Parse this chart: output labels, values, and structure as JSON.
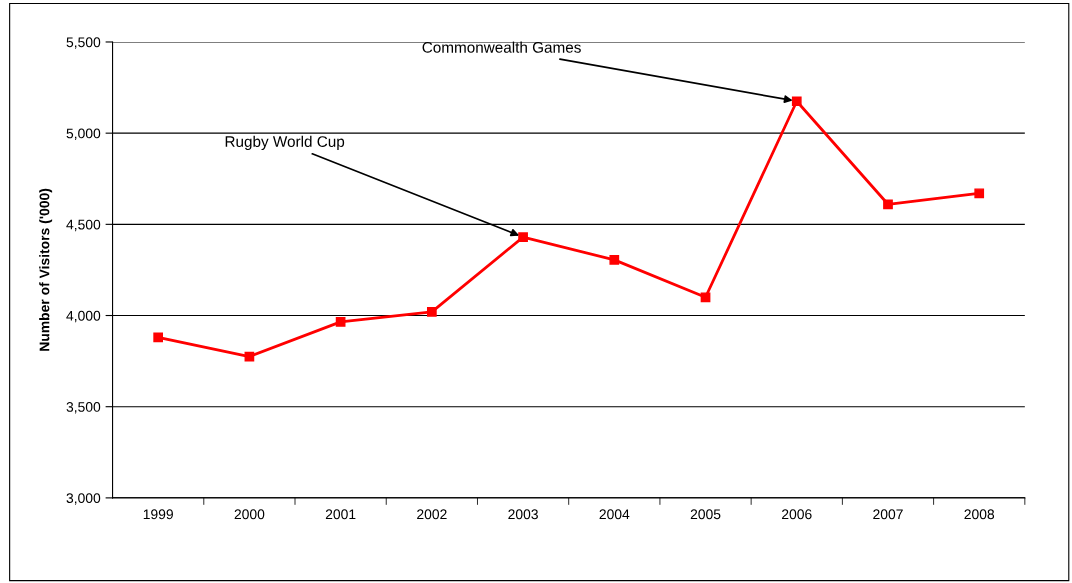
{
  "chart_data": {
    "type": "line",
    "ylabel": "Number of Visitors ('000)",
    "categories": [
      "1999",
      "2000",
      "2001",
      "2002",
      "2003",
      "2004",
      "2005",
      "2006",
      "2007",
      "2008"
    ],
    "series": [
      {
        "color": "#ff0000",
        "values": [
          3880,
          3775,
          3965,
          4020,
          4430,
          4305,
          4100,
          5175,
          4610,
          4670
        ]
      }
    ],
    "ylim": [
      3000,
      5500
    ],
    "yticks": [
      {
        "value": 3000,
        "label": "3,000"
      },
      {
        "value": 3500,
        "label": "3,500"
      },
      {
        "value": 4000,
        "label": "4,000"
      },
      {
        "value": 4500,
        "label": "4,500"
      },
      {
        "value": 5000,
        "label": "5,000"
      },
      {
        "value": 5500,
        "label": "5,500"
      }
    ],
    "grid": "y",
    "marker": "square",
    "line_style": "solid",
    "annotations": [
      {
        "text": "Rugby World Cup",
        "x": "2003",
        "y": 4430
      },
      {
        "text": "Commonwealth Games",
        "x": "2006",
        "y": 5175
      }
    ]
  }
}
